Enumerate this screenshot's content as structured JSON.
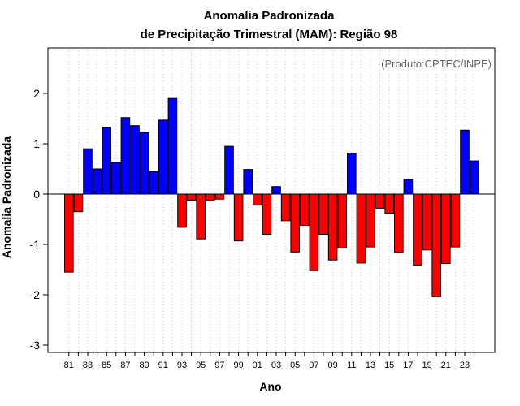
{
  "chart_data": {
    "type": "bar",
    "title": [
      "Anomalia Padronizada",
      "de Precipitação Trimestral (MAM): Região 98"
    ],
    "xlabel": "Ano",
    "ylabel": "Anomalia Padronizada",
    "credit": "(Produto:CPTEC/INPE)",
    "ylim": [
      -3,
      3
    ],
    "yticks": [
      -3,
      -2,
      -1,
      0,
      1,
      2
    ],
    "grid": true,
    "colors": {
      "positive": "#0000ff",
      "negative": "#ff0000",
      "edge": "#000000",
      "grid": "#c8c8c8",
      "credit": "#666666"
    },
    "categories": [
      "81",
      "82",
      "83",
      "84",
      "85",
      "86",
      "87",
      "88",
      "89",
      "90",
      "91",
      "92",
      "93",
      "94",
      "95",
      "96",
      "97",
      "98",
      "99",
      "00",
      "01",
      "02",
      "03",
      "04",
      "05",
      "06",
      "07",
      "08",
      "09",
      "10",
      "11",
      "12",
      "13",
      "14",
      "15",
      "16",
      "17",
      "18",
      "19",
      "20",
      "21",
      "22",
      "23",
      "24"
    ],
    "xtick_labels": [
      "81",
      "83",
      "85",
      "87",
      "89",
      "91",
      "93",
      "95",
      "97",
      "99",
      "01",
      "03",
      "05",
      "07",
      "09",
      "11",
      "13",
      "15",
      "17",
      "19",
      "21",
      "23"
    ],
    "values": [
      -1.55,
      -0.35,
      0.9,
      0.5,
      1.32,
      0.63,
      1.52,
      1.36,
      1.22,
      0.45,
      1.47,
      1.9,
      -0.66,
      -0.12,
      -0.89,
      -0.13,
      -0.1,
      0.95,
      -0.93,
      0.49,
      -0.22,
      -0.8,
      0.15,
      -0.53,
      -1.15,
      -0.62,
      -1.52,
      -0.8,
      -1.31,
      -1.07,
      0.81,
      -1.37,
      -1.05,
      -0.28,
      -0.38,
      -1.16,
      0.29,
      -1.41,
      -1.11,
      -2.04,
      -1.38,
      -1.05,
      1.27,
      0.66
    ]
  }
}
